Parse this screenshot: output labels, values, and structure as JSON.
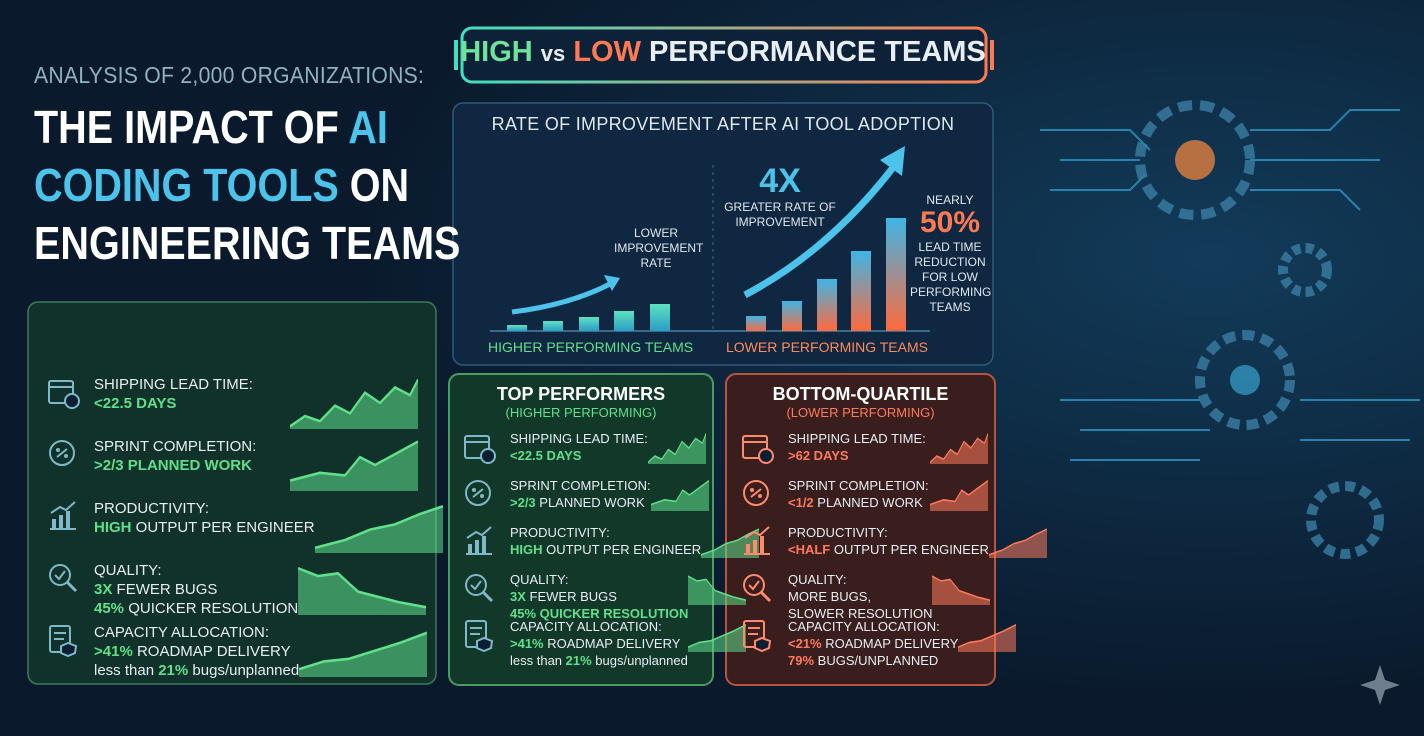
{
  "header": {
    "kicker": "ANALYSIS OF 2,000 ORGANIZATIONS:",
    "title": [
      {
        "text": "THE IMPACT OF ",
        "accent": false
      },
      {
        "text": "AI",
        "accent": true
      },
      {
        "text": "CODING TOOLS",
        "accent": true
      },
      {
        "text": " ON",
        "accent": false
      },
      {
        "text": "ENGINEERING TEAMS",
        "accent": false
      }
    ]
  },
  "banner": {
    "high": "HIGH",
    "vs": "vs",
    "low": "LOW",
    "rest": "PERFORMANCE TEAMS"
  },
  "chart_panel": {
    "title": "RATE OF IMPROVEMENT AFTER AI TOOL ADOPTION",
    "low_note": "LOWER IMPROVEMENT RATE",
    "multiplier": "4X",
    "multiplier_note": "GREATER RATE OF IMPROVEMENT",
    "nearly": "NEARLY",
    "percent": "50%",
    "percent_note": "LEAD TIME REDUCTION FOR LOW PERFORMING TEAMS",
    "left_label": "HIGHER PERFORMING TEAMS",
    "right_label": "LOWER PERFORMING TEAMS"
  },
  "left_panel": {
    "metrics": [
      {
        "label": "SHIPPING LEAD TIME:",
        "lines": [
          [
            {
              "text": "<22.5 DAYS",
              "em": true
            }
          ]
        ]
      },
      {
        "label": "SPRINT COMPLETION:",
        "lines": [
          [
            {
              "text": ">2/3 PLANNED WORK",
              "em": true
            }
          ]
        ]
      },
      {
        "label": "PRODUCTIVITY:",
        "lines": [
          [
            {
              "text": "HIGH",
              "em": true
            },
            {
              "text": " OUTPUT PER ENGINEER",
              "em": false
            }
          ]
        ]
      },
      {
        "label": "QUALITY:",
        "lines": [
          [
            {
              "text": "3X",
              "em": true
            },
            {
              "text": " FEWER BUGS",
              "em": false
            }
          ],
          [
            {
              "text": "45%",
              "em": true
            },
            {
              "text": " QUICKER RESOLUTION",
              "em": false
            }
          ]
        ]
      },
      {
        "label": "CAPACITY ALLOCATION:",
        "lines": [
          [
            {
              "text": ">41%",
              "em": true
            },
            {
              "text": " ROADMAP DELIVERY",
              "em": false
            }
          ],
          [
            {
              "text": "less than ",
              "em": false
            },
            {
              "text": "21%",
              "em": true
            },
            {
              "text": " bugs/unplanned",
              "em": false
            }
          ]
        ]
      }
    ]
  },
  "top_card": {
    "title": "TOP PERFORMERS",
    "subtitle": "(HIGHER PERFORMING)",
    "metrics": [
      {
        "label": "SHIPPING LEAD TIME:",
        "lines": [
          [
            {
              "text": "<22.5 DAYS",
              "em": true
            }
          ]
        ]
      },
      {
        "label": "SPRINT COMPLETION:",
        "lines": [
          [
            {
              "text": ">2/3",
              "em": true
            },
            {
              "text": " PLANNED WORK",
              "em": false
            }
          ]
        ]
      },
      {
        "label": "PRODUCTIVITY:",
        "lines": [
          [
            {
              "text": "HIGH",
              "em": true
            },
            {
              "text": " OUTPUT PER ENGINEER",
              "em": false
            }
          ]
        ]
      },
      {
        "label": "QUALITY:",
        "lines": [
          [
            {
              "text": "3X",
              "em": true
            },
            {
              "text": " FEWER BUGS",
              "em": false
            }
          ],
          [
            {
              "text": "45% QUICKER RESOLUTION",
              "em": true
            }
          ]
        ]
      },
      {
        "label": "CAPACITY ALLOCATION:",
        "lines": [
          [
            {
              "text": ">41%",
              "em": true
            },
            {
              "text": " ROADMAP DELIVERY",
              "em": false
            }
          ],
          [
            {
              "text": "less than ",
              "em": false
            },
            {
              "text": "21%",
              "em": true
            },
            {
              "text": " bugs/unplanned",
              "em": false
            }
          ]
        ]
      }
    ]
  },
  "bottom_card": {
    "title": "BOTTOM-QUARTILE",
    "subtitle": "(LOWER PERFORMING)",
    "metrics": [
      {
        "label": "SHIPPING LEAD TIME:",
        "lines": [
          [
            {
              "text": ">62 DAYS",
              "em": true
            }
          ]
        ]
      },
      {
        "label": "SPRINT COMPLETION:",
        "lines": [
          [
            {
              "text": "<1/2",
              "em": true
            },
            {
              "text": " PLANNED WORK",
              "em": false
            }
          ]
        ]
      },
      {
        "label": "PRODUCTIVITY:",
        "lines": [
          [
            {
              "text": "<HALF",
              "em": true
            },
            {
              "text": " OUTPUT PER ENGINEER",
              "em": false
            }
          ]
        ]
      },
      {
        "label": "QUALITY:",
        "lines": [
          [
            {
              "text": "MORE BUGS,",
              "em": false
            }
          ],
          [
            {
              "text": "SLOWER RESOLUTION",
              "em": false
            }
          ]
        ]
      },
      {
        "label": "CAPACITY ALLOCATION:",
        "lines": [
          [
            {
              "text": "<21%",
              "em": true
            },
            {
              "text": " ROADMAP DELIVERY",
              "em": false
            }
          ],
          [
            {
              "text": "79%",
              "em": true
            },
            {
              "text": " BUGS/UNPLANNED",
              "em": false
            }
          ]
        ]
      }
    ]
  }
}
